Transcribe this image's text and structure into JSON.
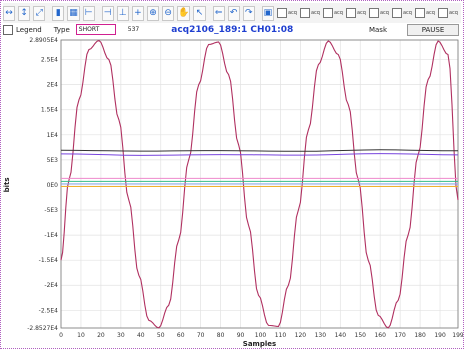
{
  "toolbar": {
    "icons": [
      "zoom-in-x-icon",
      "zoom-in-y-icon",
      "zoom-fit-icon",
      "bar-chart-icon",
      "grid-icon",
      "marker-icon",
      "cursor-x-icon",
      "cursor-y-icon",
      "cursor-xy-icon",
      "magnify-icon",
      "magnify-out-icon",
      "pan-hand-icon",
      "pointer-icon",
      "back-arrow-icon",
      "undo-icon",
      "redo-icon",
      "image-icon"
    ],
    "acq_labels": [
      "acq",
      "acq",
      "acq",
      "acq",
      "acq",
      "acq",
      "acq",
      "acq"
    ]
  },
  "controls": {
    "legend_label": "Legend",
    "type_label": "Type",
    "type_value": "SHORT",
    "sample_count": "537",
    "mask_label": "Mask",
    "pause_label": "PAUSE"
  },
  "chart_data": {
    "type": "line",
    "title": "acq2106_189:1 CH01:08",
    "xlabel": "Samples",
    "ylabel": "bits",
    "xlim": [
      0,
      199
    ],
    "ylim": [
      -28527,
      28905
    ],
    "x_ticks": [
      0,
      10,
      20,
      30,
      40,
      50,
      60,
      70,
      80,
      90,
      100,
      110,
      120,
      130,
      140,
      150,
      160,
      170,
      180,
      190,
      199
    ],
    "y_ticks": [
      {
        "value": 28905,
        "label": "2.8905E4"
      },
      {
        "value": 25000,
        "label": "2.5E4"
      },
      {
        "value": 20000,
        "label": "2E4"
      },
      {
        "value": 15000,
        "label": "1.5E4"
      },
      {
        "value": 10000,
        "label": "1E4"
      },
      {
        "value": 5000,
        "label": "5E3"
      },
      {
        "value": 0,
        "label": "0E0"
      },
      {
        "value": -5000,
        "label": "-5E3"
      },
      {
        "value": -10000,
        "label": "-1E4"
      },
      {
        "value": -15000,
        "label": "-1.5E4"
      },
      {
        "value": -20000,
        "label": "-2E4"
      },
      {
        "value": -25000,
        "label": "-2.5E4"
      },
      {
        "value": -28527,
        "label": "-2.8527E4"
      }
    ],
    "grid": true,
    "legend": false,
    "series": [
      {
        "color": "#b03060",
        "width": 1.1,
        "x": [
          0,
          4,
          9,
          14,
          19,
          24,
          29,
          34,
          39,
          44,
          49,
          54,
          59,
          64,
          69,
          74,
          79,
          84,
          89,
          94,
          99,
          104,
          109,
          114,
          119,
          124,
          129,
          134,
          139,
          144,
          149,
          154,
          159,
          164,
          169,
          174,
          179,
          184,
          189,
          194,
          199
        ],
        "y": [
          -15000,
          1000,
          17000,
          27000,
          28800,
          25000,
          13000,
          -3000,
          -18000,
          -27000,
          -28500,
          -24000,
          -11000,
          5000,
          20000,
          28000,
          28500,
          22000,
          8000,
          -8000,
          -22000,
          -28000,
          -28200,
          -20000,
          -5000,
          11000,
          24000,
          28700,
          26000,
          16000,
          1000,
          -15000,
          -26000,
          -28500,
          -23000,
          -10000,
          6000,
          21000,
          28700,
          26000,
          -3000
        ]
      },
      {
        "color": "#333333",
        "width": 1.0,
        "x": [
          0,
          40,
          80,
          120,
          160,
          199
        ],
        "y": [
          6900,
          6750,
          6850,
          6700,
          7000,
          6800
        ]
      },
      {
        "color": "#7744dd",
        "width": 1.0,
        "x": [
          0,
          40,
          80,
          120,
          160,
          199
        ],
        "y": [
          6200,
          5900,
          6050,
          5950,
          6250,
          6000
        ]
      },
      {
        "color": "#f0b030",
        "width": 1.0,
        "x": [
          0,
          199
        ],
        "y": [
          -300,
          -300
        ]
      },
      {
        "color": "#33bb88",
        "width": 1.0,
        "x": [
          0,
          199
        ],
        "y": [
          700,
          700
        ]
      },
      {
        "color": "#ee88cc",
        "width": 1.0,
        "x": [
          0,
          199
        ],
        "y": [
          1300,
          1300
        ]
      },
      {
        "color": "#88aaee",
        "width": 1.0,
        "x": [
          0,
          199
        ],
        "y": [
          200,
          200
        ]
      }
    ]
  }
}
